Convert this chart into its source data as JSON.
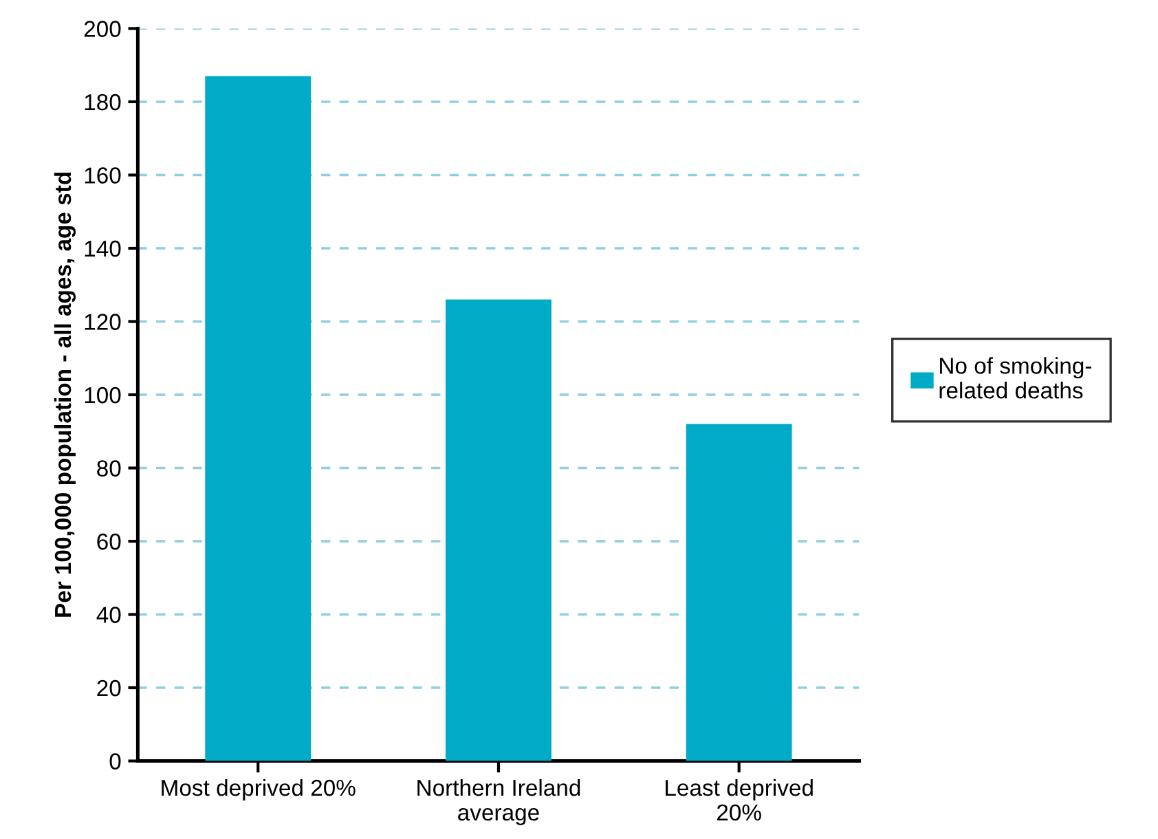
{
  "chart_data": {
    "type": "bar",
    "ylabel": "Per 100,000 population - all ages, age std",
    "categories": [
      "Most deprived 20%",
      "Northern Ireland\naverage",
      "Least deprived\n20%"
    ],
    "series": [
      {
        "name": "No of smoking-\nrelated deaths",
        "color": "#00abc8",
        "values": [
          187,
          126,
          92
        ]
      }
    ],
    "ylim": [
      0,
      200
    ],
    "yticks": [
      0,
      20,
      40,
      60,
      80,
      100,
      120,
      140,
      160,
      180,
      200
    ],
    "grid": "y",
    "legend": "right"
  }
}
